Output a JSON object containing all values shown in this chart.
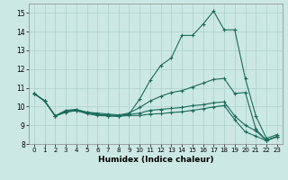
{
  "xlabel": "Humidex (Indice chaleur)",
  "xlim": [
    -0.5,
    23.5
  ],
  "ylim": [
    8,
    15.5
  ],
  "xticks": [
    0,
    1,
    2,
    3,
    4,
    5,
    6,
    7,
    8,
    9,
    10,
    11,
    12,
    13,
    14,
    15,
    16,
    17,
    18,
    19,
    20,
    21,
    22,
    23
  ],
  "yticks": [
    8,
    9,
    10,
    11,
    12,
    13,
    14,
    15
  ],
  "bg_color": "#cce8e4",
  "grid_color": "#aacfcc",
  "line_color": "#1a6b5a",
  "line1_y": [
    10.7,
    10.3,
    9.5,
    9.7,
    9.8,
    9.7,
    9.6,
    9.5,
    9.5,
    9.6,
    10.4,
    11.4,
    12.2,
    12.6,
    13.8,
    13.8,
    14.4,
    15.1,
    14.1,
    14.1,
    11.5,
    9.5,
    8.3,
    8.5
  ],
  "line2_y": [
    10.7,
    10.3,
    9.5,
    9.8,
    9.85,
    9.7,
    9.65,
    9.6,
    9.55,
    9.65,
    9.95,
    10.3,
    10.55,
    10.75,
    10.85,
    11.05,
    11.25,
    11.45,
    11.5,
    10.7,
    10.75,
    8.8,
    8.2,
    8.4
  ],
  "line3_y": [
    10.7,
    10.3,
    9.5,
    9.75,
    9.82,
    9.67,
    9.57,
    9.55,
    9.5,
    9.58,
    9.65,
    9.8,
    9.85,
    9.9,
    9.95,
    10.05,
    10.1,
    10.2,
    10.25,
    9.5,
    9.0,
    8.7,
    8.2,
    8.4
  ],
  "line4_y": [
    10.7,
    10.3,
    9.5,
    9.7,
    9.78,
    9.62,
    9.52,
    9.5,
    9.48,
    9.52,
    9.52,
    9.6,
    9.62,
    9.68,
    9.72,
    9.8,
    9.88,
    9.98,
    10.05,
    9.3,
    8.65,
    8.42,
    8.18,
    8.38
  ]
}
